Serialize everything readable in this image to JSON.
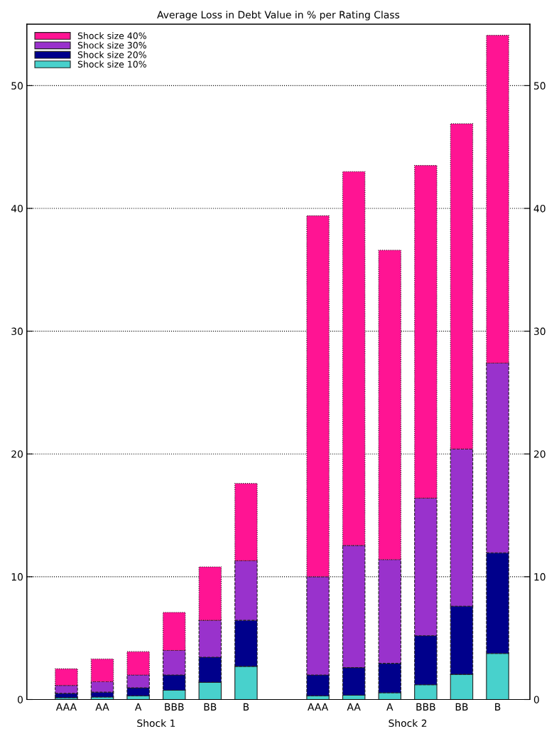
{
  "chart_data": {
    "type": "bar",
    "stacked": true,
    "title": "Average Loss in Debt Value in % per Rating Class",
    "categories": [
      "AAA",
      "AA",
      "A",
      "BBB",
      "BB",
      "B",
      null,
      "AAA",
      "AA",
      "A",
      "BBB",
      "BB",
      "B"
    ],
    "series": [
      {
        "name": "Shock size 10%",
        "color": "#48d1cc",
        "values": [
          0.15,
          0.2,
          0.3,
          0.75,
          1.4,
          2.7,
          null,
          0.3,
          0.35,
          0.55,
          1.2,
          2.05,
          3.75
        ]
      },
      {
        "name": "Shock size 20%",
        "color": "#00008b",
        "values": [
          0.35,
          0.4,
          0.65,
          1.25,
          2.05,
          3.75,
          null,
          1.7,
          2.25,
          2.4,
          4.0,
          5.55,
          8.2
        ]
      },
      {
        "name": "Shock size 30%",
        "color": "#9932cc",
        "values": [
          0.65,
          0.85,
          1.05,
          2.0,
          3.0,
          4.85,
          null,
          8.0,
          9.95,
          8.45,
          11.2,
          12.8,
          15.45
        ]
      },
      {
        "name": "Shock size 40%",
        "color": "#ff1493",
        "values": [
          1.35,
          1.85,
          1.9,
          3.1,
          4.35,
          6.3,
          null,
          29.4,
          30.45,
          25.2,
          27.1,
          26.5,
          26.7
        ]
      }
    ],
    "ylim": [
      0,
      55
    ],
    "yticks": [
      0,
      10,
      20,
      30,
      40,
      50
    ],
    "y2lim": [
      0,
      55
    ],
    "y2ticks": [
      0,
      10,
      20,
      30,
      40,
      50
    ],
    "grid": "y",
    "legend": "top left",
    "annotations": [
      "Shock 1",
      "Shock 2"
    ]
  }
}
